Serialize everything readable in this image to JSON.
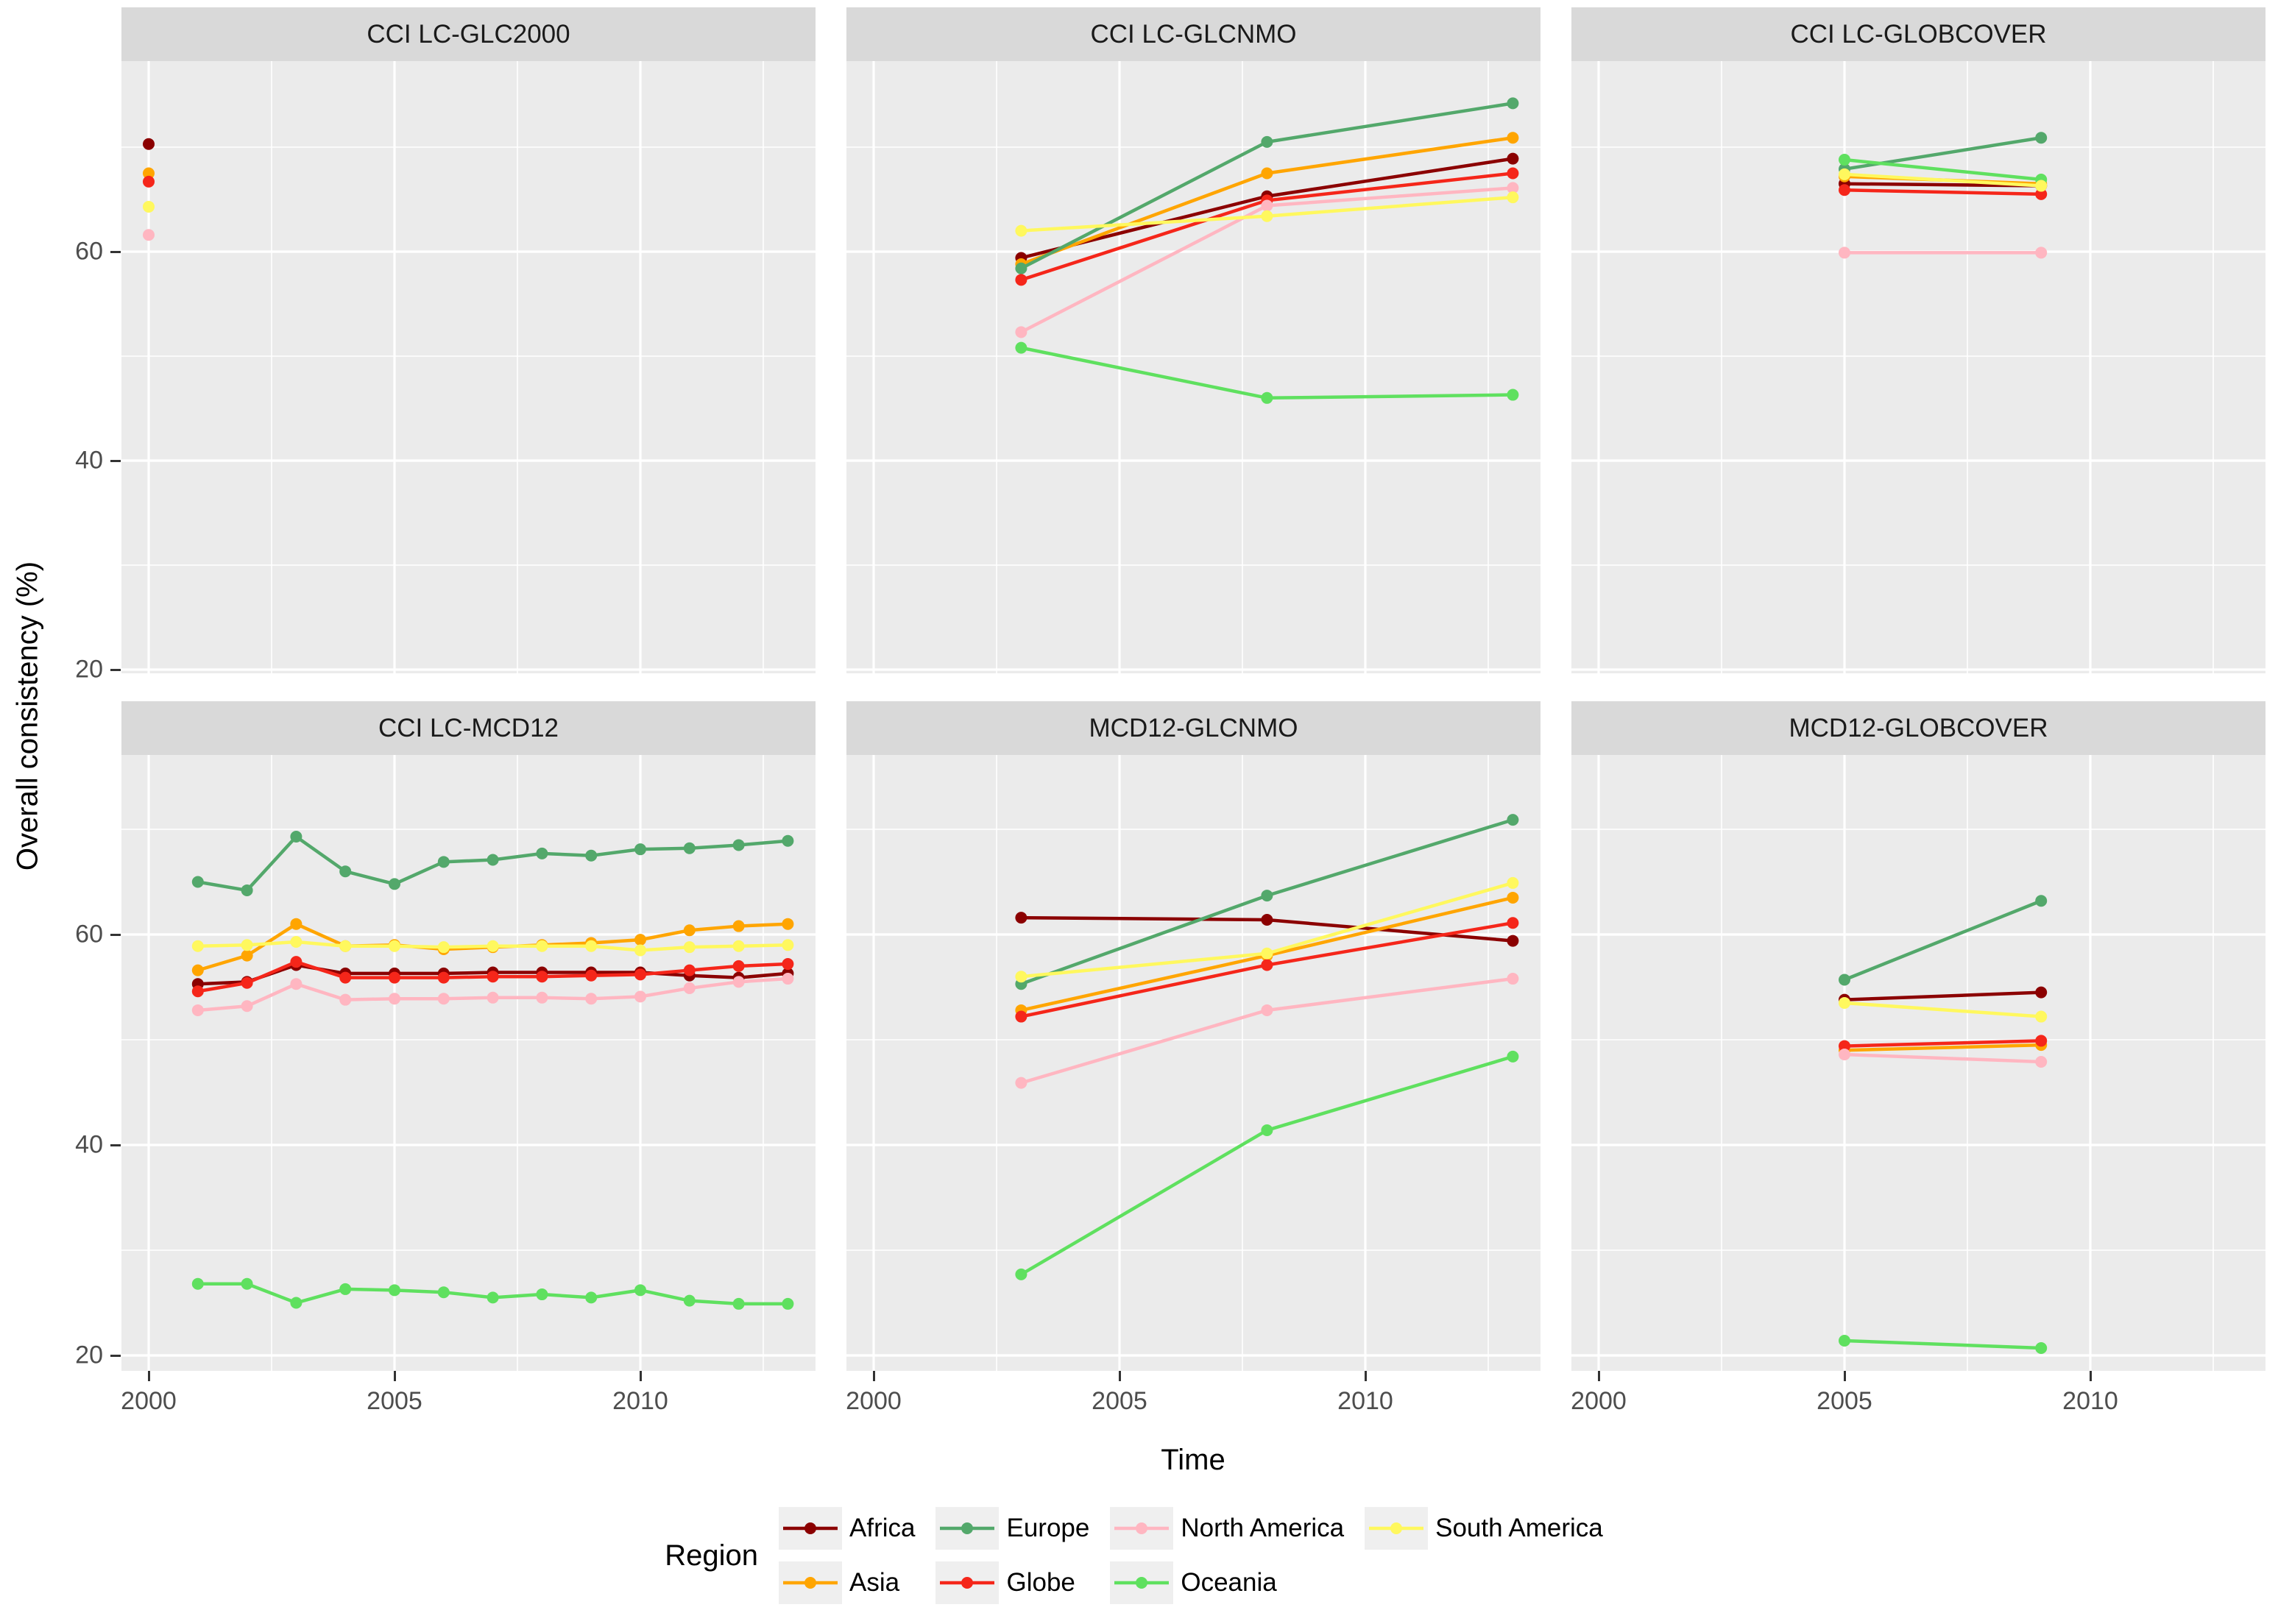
{
  "axes": {
    "y_label": "Overall consistency (%)",
    "x_label": "Time",
    "y_ticks": [
      60,
      40,
      20
    ],
    "x_ticks": [
      2000,
      2005,
      2010
    ]
  },
  "legend": {
    "title": "Region",
    "entries": [
      "Africa",
      "Asia",
      "Europe",
      "Globe",
      "North America",
      "Oceania",
      "South America"
    ]
  },
  "colors": {
    "Africa": "#8B0000",
    "Asia": "#FFA500",
    "Europe": "#53A86B",
    "Globe": "#F5261A",
    "North America": "#FFB6C1",
    "Oceania": "#5FE05F",
    "South America": "#FFF85E",
    "panel_bg": "#EBEBEB",
    "strip_bg": "#D9D9D9",
    "grid": "#FFFFFF",
    "tick_text": "#4D4D4D"
  },
  "chart_data": [
    {
      "type": "line",
      "title": "CCI LC-GLC2000",
      "x": [
        2000
      ],
      "series": [
        {
          "name": "Africa",
          "values": [
            70.3
          ]
        },
        {
          "name": "Asia",
          "values": [
            67.5
          ]
        },
        {
          "name": "Globe",
          "values": [
            66.7
          ]
        },
        {
          "name": "North America",
          "values": [
            61.6
          ]
        },
        {
          "name": "South America",
          "values": [
            64.3
          ]
        }
      ],
      "ylim": [
        18.5,
        78
      ],
      "grid": true,
      "markers": true
    },
    {
      "type": "line",
      "title": "CCI LC-GLCNMO",
      "x": [
        2003,
        2008,
        2013
      ],
      "series": [
        {
          "name": "Africa",
          "values": [
            59.4,
            65.3,
            68.9
          ]
        },
        {
          "name": "Asia",
          "values": [
            58.8,
            67.5,
            70.9
          ]
        },
        {
          "name": "Europe",
          "values": [
            58.4,
            70.5,
            74.2
          ]
        },
        {
          "name": "Globe",
          "values": [
            57.3,
            64.9,
            67.5
          ]
        },
        {
          "name": "North America",
          "values": [
            52.3,
            64.4,
            66.1
          ]
        },
        {
          "name": "Oceania",
          "values": [
            50.8,
            46.0,
            46.3
          ]
        },
        {
          "name": "South America",
          "values": [
            62.0,
            63.4,
            65.2
          ]
        }
      ],
      "ylim": [
        18.5,
        78
      ],
      "grid": true,
      "markers": true
    },
    {
      "type": "line",
      "title": "CCI LC-GLOBCOVER",
      "x": [
        2005,
        2009
      ],
      "series": [
        {
          "name": "Africa",
          "values": [
            66.5,
            66.3
          ]
        },
        {
          "name": "Asia",
          "values": [
            67.2,
            66.5
          ]
        },
        {
          "name": "Europe",
          "values": [
            67.9,
            70.9
          ]
        },
        {
          "name": "Globe",
          "values": [
            65.9,
            65.5
          ]
        },
        {
          "name": "North America",
          "values": [
            59.9,
            59.9
          ]
        },
        {
          "name": "Oceania",
          "values": [
            68.8,
            66.9
          ]
        },
        {
          "name": "South America",
          "values": [
            67.4,
            66.3
          ]
        }
      ],
      "ylim": [
        18.5,
        78
      ],
      "grid": true,
      "markers": true
    },
    {
      "type": "line",
      "title": "CCI LC-MCD12",
      "x": [
        2001,
        2002,
        2003,
        2004,
        2005,
        2006,
        2007,
        2008,
        2009,
        2010,
        2011,
        2012,
        2013
      ],
      "series": [
        {
          "name": "Africa",
          "values": [
            55.3,
            55.5,
            57.1,
            56.3,
            56.3,
            56.3,
            56.4,
            56.4,
            56.4,
            56.4,
            56.1,
            55.9,
            56.3
          ]
        },
        {
          "name": "Asia",
          "values": [
            56.6,
            58.0,
            61.0,
            58.9,
            59.0,
            58.6,
            58.8,
            59.0,
            59.2,
            59.5,
            60.4,
            60.8,
            61.0
          ]
        },
        {
          "name": "Europe",
          "values": [
            65.0,
            64.2,
            69.3,
            66.0,
            64.8,
            66.9,
            67.1,
            67.7,
            67.5,
            68.1,
            68.2,
            68.5,
            68.9
          ]
        },
        {
          "name": "Globe",
          "values": [
            54.6,
            55.4,
            57.4,
            55.9,
            55.9,
            55.9,
            56.0,
            56.0,
            56.1,
            56.2,
            56.6,
            57.0,
            57.2
          ]
        },
        {
          "name": "North America",
          "values": [
            52.8,
            53.2,
            55.3,
            53.8,
            53.9,
            53.9,
            54.0,
            54.0,
            53.9,
            54.1,
            54.9,
            55.5,
            55.8
          ]
        },
        {
          "name": "Oceania",
          "values": [
            26.8,
            26.8,
            25.0,
            26.3,
            26.2,
            26.0,
            25.5,
            25.8,
            25.5,
            26.2,
            25.2,
            24.9,
            24.9
          ]
        },
        {
          "name": "South America",
          "values": [
            58.9,
            59.0,
            59.3,
            58.9,
            58.9,
            58.8,
            58.9,
            58.9,
            58.9,
            58.5,
            58.8,
            58.9,
            59.0
          ]
        }
      ],
      "ylim": [
        18.5,
        77
      ],
      "grid": true,
      "markers": true
    },
    {
      "type": "line",
      "title": "MCD12-GLCNMO",
      "x": [
        2003,
        2008,
        2013
      ],
      "series": [
        {
          "name": "Africa",
          "values": [
            61.6,
            61.4,
            59.4
          ]
        },
        {
          "name": "Asia",
          "values": [
            52.8,
            58.0,
            63.5
          ]
        },
        {
          "name": "Europe",
          "values": [
            55.3,
            63.7,
            70.9
          ]
        },
        {
          "name": "Globe",
          "values": [
            52.2,
            57.1,
            61.1
          ]
        },
        {
          "name": "North America",
          "values": [
            45.9,
            52.8,
            55.8
          ]
        },
        {
          "name": "Oceania",
          "values": [
            27.7,
            41.4,
            48.4
          ]
        },
        {
          "name": "South America",
          "values": [
            56.0,
            58.2,
            64.9
          ]
        }
      ],
      "ylim": [
        18.5,
        77
      ],
      "grid": true,
      "markers": true
    },
    {
      "type": "line",
      "title": "MCD12-GLOBCOVER",
      "x": [
        2005,
        2009
      ],
      "series": [
        {
          "name": "Africa",
          "values": [
            53.8,
            54.5
          ]
        },
        {
          "name": "Asia",
          "values": [
            49.0,
            49.5
          ]
        },
        {
          "name": "Europe",
          "values": [
            55.7,
            63.2
          ]
        },
        {
          "name": "Globe",
          "values": [
            49.4,
            49.9
          ]
        },
        {
          "name": "North America",
          "values": [
            48.6,
            47.9
          ]
        },
        {
          "name": "Oceania",
          "values": [
            21.4,
            20.7
          ]
        },
        {
          "name": "South America",
          "values": [
            53.5,
            52.2
          ]
        }
      ],
      "ylim": [
        18.5,
        77
      ],
      "grid": true,
      "markers": true
    }
  ]
}
